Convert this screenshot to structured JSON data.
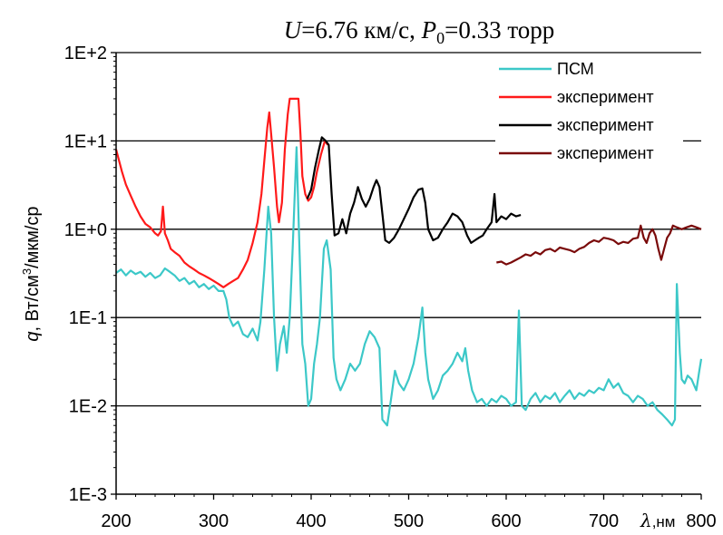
{
  "chart_data": {
    "type": "line",
    "title": {
      "u": "U",
      "u_eq": "=6.76 км/с, ",
      "p": "P",
      "p_sub": "0",
      "p_eq": "=0.33 торр"
    },
    "ylabel": {
      "var": "q",
      "units_a": ", Вт/см",
      "units_sup": "3",
      "units_b": "/мкм/ср"
    },
    "xunit_label": {
      "lambda": "λ",
      "unit": ",нм"
    },
    "xlim": [
      200,
      800
    ],
    "ylim": [
      0.001,
      100
    ],
    "yscale": "log",
    "x_ticks": [
      {
        "value": 200,
        "label": "200"
      },
      {
        "value": 300,
        "label": "300"
      },
      {
        "value": 400,
        "label": "400"
      },
      {
        "value": 500,
        "label": "500"
      },
      {
        "value": 600,
        "label": "600"
      },
      {
        "value": 700,
        "label": "700"
      },
      {
        "value": 800,
        "label": "800"
      }
    ],
    "y_ticks": [
      {
        "value": 0.001,
        "label": "1E-3"
      },
      {
        "value": 0.01,
        "label": "1E-2"
      },
      {
        "value": 0.1,
        "label": "1E-1"
      },
      {
        "value": 1,
        "label": "1E+0"
      },
      {
        "value": 10,
        "label": "1E+1"
      },
      {
        "value": 100,
        "label": "1E+2"
      }
    ],
    "grid": "horizontal",
    "legend_position": "top-right",
    "series": [
      {
        "name": "ПСМ",
        "color": "#3cc8c8",
        "points": [
          [
            200,
            0.32
          ],
          [
            205,
            0.35
          ],
          [
            210,
            0.3
          ],
          [
            215,
            0.34
          ],
          [
            220,
            0.31
          ],
          [
            225,
            0.33
          ],
          [
            230,
            0.29
          ],
          [
            235,
            0.32
          ],
          [
            240,
            0.28
          ],
          [
            245,
            0.3
          ],
          [
            250,
            0.36
          ],
          [
            255,
            0.33
          ],
          [
            260,
            0.3
          ],
          [
            265,
            0.26
          ],
          [
            270,
            0.28
          ],
          [
            275,
            0.24
          ],
          [
            280,
            0.26
          ],
          [
            285,
            0.22
          ],
          [
            290,
            0.24
          ],
          [
            295,
            0.21
          ],
          [
            300,
            0.23
          ],
          [
            305,
            0.2
          ],
          [
            310,
            0.2
          ],
          [
            313,
            0.16
          ],
          [
            316,
            0.1
          ],
          [
            320,
            0.08
          ],
          [
            325,
            0.09
          ],
          [
            330,
            0.065
          ],
          [
            335,
            0.06
          ],
          [
            340,
            0.075
          ],
          [
            345,
            0.055
          ],
          [
            348,
            0.09
          ],
          [
            352,
            0.35
          ],
          [
            356,
            1.8
          ],
          [
            359,
            0.9
          ],
          [
            362,
            0.1
          ],
          [
            365,
            0.025
          ],
          [
            368,
            0.05
          ],
          [
            372,
            0.08
          ],
          [
            375,
            0.04
          ],
          [
            378,
            0.1
          ],
          [
            381,
            0.6
          ],
          [
            385,
            8.5
          ],
          [
            388,
            0.6
          ],
          [
            391,
            0.05
          ],
          [
            394,
            0.03
          ],
          [
            397,
            0.01
          ],
          [
            400,
            0.012
          ],
          [
            403,
            0.03
          ],
          [
            406,
            0.05
          ],
          [
            409,
            0.1
          ],
          [
            413,
            0.6
          ],
          [
            416,
            0.75
          ],
          [
            420,
            0.35
          ],
          [
            423,
            0.035
          ],
          [
            426,
            0.02
          ],
          [
            430,
            0.015
          ],
          [
            435,
            0.02
          ],
          [
            440,
            0.03
          ],
          [
            445,
            0.025
          ],
          [
            450,
            0.03
          ],
          [
            455,
            0.05
          ],
          [
            460,
            0.07
          ],
          [
            465,
            0.06
          ],
          [
            470,
            0.045
          ],
          [
            473,
            0.007
          ],
          [
            478,
            0.006
          ],
          [
            482,
            0.012
          ],
          [
            486,
            0.025
          ],
          [
            490,
            0.018
          ],
          [
            495,
            0.015
          ],
          [
            500,
            0.02
          ],
          [
            505,
            0.03
          ],
          [
            510,
            0.06
          ],
          [
            514,
            0.13
          ],
          [
            517,
            0.04
          ],
          [
            520,
            0.02
          ],
          [
            525,
            0.012
          ],
          [
            530,
            0.015
          ],
          [
            535,
            0.022
          ],
          [
            540,
            0.025
          ],
          [
            545,
            0.03
          ],
          [
            550,
            0.04
          ],
          [
            555,
            0.032
          ],
          [
            558,
            0.045
          ],
          [
            561,
            0.025
          ],
          [
            565,
            0.015
          ],
          [
            570,
            0.011
          ],
          [
            575,
            0.012
          ],
          [
            580,
            0.01
          ],
          [
            585,
            0.012
          ],
          [
            590,
            0.011
          ],
          [
            595,
            0.013
          ],
          [
            600,
            0.012
          ],
          [
            605,
            0.01
          ],
          [
            610,
            0.011
          ],
          [
            613,
            0.12
          ],
          [
            616,
            0.01
          ],
          [
            620,
            0.009
          ],
          [
            625,
            0.012
          ],
          [
            630,
            0.014
          ],
          [
            635,
            0.011
          ],
          [
            640,
            0.013
          ],
          [
            645,
            0.012
          ],
          [
            650,
            0.014
          ],
          [
            655,
            0.011
          ],
          [
            660,
            0.013
          ],
          [
            665,
            0.015
          ],
          [
            670,
            0.012
          ],
          [
            675,
            0.014
          ],
          [
            680,
            0.013
          ],
          [
            685,
            0.015
          ],
          [
            690,
            0.014
          ],
          [
            695,
            0.016
          ],
          [
            700,
            0.015
          ],
          [
            705,
            0.02
          ],
          [
            710,
            0.016
          ],
          [
            715,
            0.018
          ],
          [
            720,
            0.014
          ],
          [
            725,
            0.013
          ],
          [
            730,
            0.011
          ],
          [
            735,
            0.013
          ],
          [
            740,
            0.012
          ],
          [
            745,
            0.01
          ],
          [
            750,
            0.011
          ],
          [
            755,
            0.009
          ],
          [
            760,
            0.008
          ],
          [
            765,
            0.007
          ],
          [
            770,
            0.006
          ],
          [
            773,
            0.007
          ],
          [
            775,
            0.24
          ],
          [
            778,
            0.04
          ],
          [
            780,
            0.02
          ],
          [
            783,
            0.018
          ],
          [
            786,
            0.022
          ],
          [
            790,
            0.02
          ],
          [
            795,
            0.015
          ],
          [
            798,
            0.025
          ],
          [
            800,
            0.034
          ]
        ]
      },
      {
        "name": "эксперимент",
        "color": "#ff1a1a",
        "points": [
          [
            200,
            8
          ],
          [
            203,
            6
          ],
          [
            206,
            4.5
          ],
          [
            210,
            3.2
          ],
          [
            215,
            2.4
          ],
          [
            220,
            1.8
          ],
          [
            225,
            1.4
          ],
          [
            230,
            1.15
          ],
          [
            235,
            1.05
          ],
          [
            240,
            0.9
          ],
          [
            243,
            0.85
          ],
          [
            246,
            0.95
          ],
          [
            248,
            1.8
          ],
          [
            250,
            0.9
          ],
          [
            253,
            0.75
          ],
          [
            256,
            0.6
          ],
          [
            260,
            0.55
          ],
          [
            265,
            0.5
          ],
          [
            270,
            0.42
          ],
          [
            275,
            0.38
          ],
          [
            280,
            0.35
          ],
          [
            285,
            0.32
          ],
          [
            290,
            0.3
          ],
          [
            295,
            0.28
          ],
          [
            300,
            0.26
          ],
          [
            305,
            0.24
          ],
          [
            310,
            0.22
          ],
          [
            315,
            0.24
          ],
          [
            320,
            0.26
          ],
          [
            325,
            0.28
          ],
          [
            330,
            0.35
          ],
          [
            335,
            0.45
          ],
          [
            340,
            0.7
          ],
          [
            345,
            1.2
          ],
          [
            349,
            2.5
          ],
          [
            352,
            6
          ],
          [
            355,
            14
          ],
          [
            357,
            21
          ],
          [
            359,
            12
          ],
          [
            362,
            5
          ],
          [
            365,
            1.8
          ],
          [
            367,
            1.2
          ],
          [
            370,
            2
          ],
          [
            373,
            8
          ],
          [
            376,
            20
          ],
          [
            378,
            30
          ],
          [
            381,
            30
          ],
          [
            384,
            30
          ],
          [
            387,
            30
          ],
          [
            389,
            12
          ],
          [
            391,
            4
          ],
          [
            394,
            2.5
          ],
          [
            397,
            2.1
          ],
          [
            400,
            2.3
          ],
          [
            403,
            3
          ],
          [
            406,
            4.5
          ],
          [
            410,
            7
          ],
          [
            414,
            10
          ],
          [
            417,
            9
          ]
        ]
      },
      {
        "name": "эксперимент",
        "color": "#000000",
        "points": [
          [
            396,
            2.2
          ],
          [
            400,
            2.8
          ],
          [
            404,
            5
          ],
          [
            408,
            8
          ],
          [
            411,
            11
          ],
          [
            415,
            10
          ],
          [
            418,
            9
          ],
          [
            421,
            2.5
          ],
          [
            424,
            0.85
          ],
          [
            428,
            0.9
          ],
          [
            432,
            1.3
          ],
          [
            436,
            0.9
          ],
          [
            440,
            1.5
          ],
          [
            444,
            2
          ],
          [
            448,
            3
          ],
          [
            452,
            2.2
          ],
          [
            456,
            1.8
          ],
          [
            460,
            2.2
          ],
          [
            464,
            3
          ],
          [
            467,
            3.6
          ],
          [
            470,
            3
          ],
          [
            473,
            1.5
          ],
          [
            476,
            0.75
          ],
          [
            480,
            0.7
          ],
          [
            485,
            0.8
          ],
          [
            490,
            1.0
          ],
          [
            495,
            1.3
          ],
          [
            500,
            1.7
          ],
          [
            505,
            2.3
          ],
          [
            510,
            2.8
          ],
          [
            514,
            2.9
          ],
          [
            517,
            2
          ],
          [
            520,
            1
          ],
          [
            525,
            0.75
          ],
          [
            530,
            0.8
          ],
          [
            535,
            1.0
          ],
          [
            540,
            1.2
          ],
          [
            545,
            1.5
          ],
          [
            550,
            1.4
          ],
          [
            555,
            1.2
          ],
          [
            560,
            0.85
          ],
          [
            564,
            0.7
          ],
          [
            568,
            0.75
          ],
          [
            572,
            0.8
          ],
          [
            576,
            0.85
          ],
          [
            580,
            1.0
          ],
          [
            585,
            1.2
          ],
          [
            588,
            2.5
          ],
          [
            590,
            1.2
          ],
          [
            595,
            1.4
          ],
          [
            600,
            1.3
          ],
          [
            605,
            1.5
          ],
          [
            610,
            1.4
          ],
          [
            615,
            1.45
          ]
        ]
      },
      {
        "name": "эксперимент",
        "color": "#7a0a0a",
        "points": [
          [
            590,
            0.42
          ],
          [
            595,
            0.43
          ],
          [
            600,
            0.4
          ],
          [
            605,
            0.42
          ],
          [
            610,
            0.45
          ],
          [
            615,
            0.48
          ],
          [
            620,
            0.52
          ],
          [
            625,
            0.5
          ],
          [
            630,
            0.55
          ],
          [
            635,
            0.52
          ],
          [
            640,
            0.58
          ],
          [
            645,
            0.6
          ],
          [
            650,
            0.56
          ],
          [
            655,
            0.62
          ],
          [
            660,
            0.6
          ],
          [
            665,
            0.58
          ],
          [
            670,
            0.55
          ],
          [
            675,
            0.6
          ],
          [
            680,
            0.63
          ],
          [
            685,
            0.7
          ],
          [
            690,
            0.75
          ],
          [
            695,
            0.72
          ],
          [
            700,
            0.8
          ],
          [
            705,
            0.78
          ],
          [
            710,
            0.75
          ],
          [
            715,
            0.68
          ],
          [
            720,
            0.72
          ],
          [
            725,
            0.7
          ],
          [
            730,
            0.78
          ],
          [
            735,
            0.8
          ],
          [
            738,
            1.1
          ],
          [
            741,
            0.8
          ],
          [
            744,
            0.7
          ],
          [
            747,
            0.9
          ],
          [
            750,
            1.0
          ],
          [
            753,
            0.85
          ],
          [
            756,
            0.6
          ],
          [
            759,
            0.45
          ],
          [
            762,
            0.6
          ],
          [
            765,
            0.8
          ],
          [
            768,
            0.9
          ],
          [
            771,
            1.1
          ],
          [
            775,
            1.05
          ],
          [
            780,
            1.0
          ],
          [
            785,
            1.05
          ],
          [
            790,
            1.1
          ],
          [
            795,
            1.05
          ],
          [
            800,
            1.0
          ]
        ]
      }
    ]
  }
}
